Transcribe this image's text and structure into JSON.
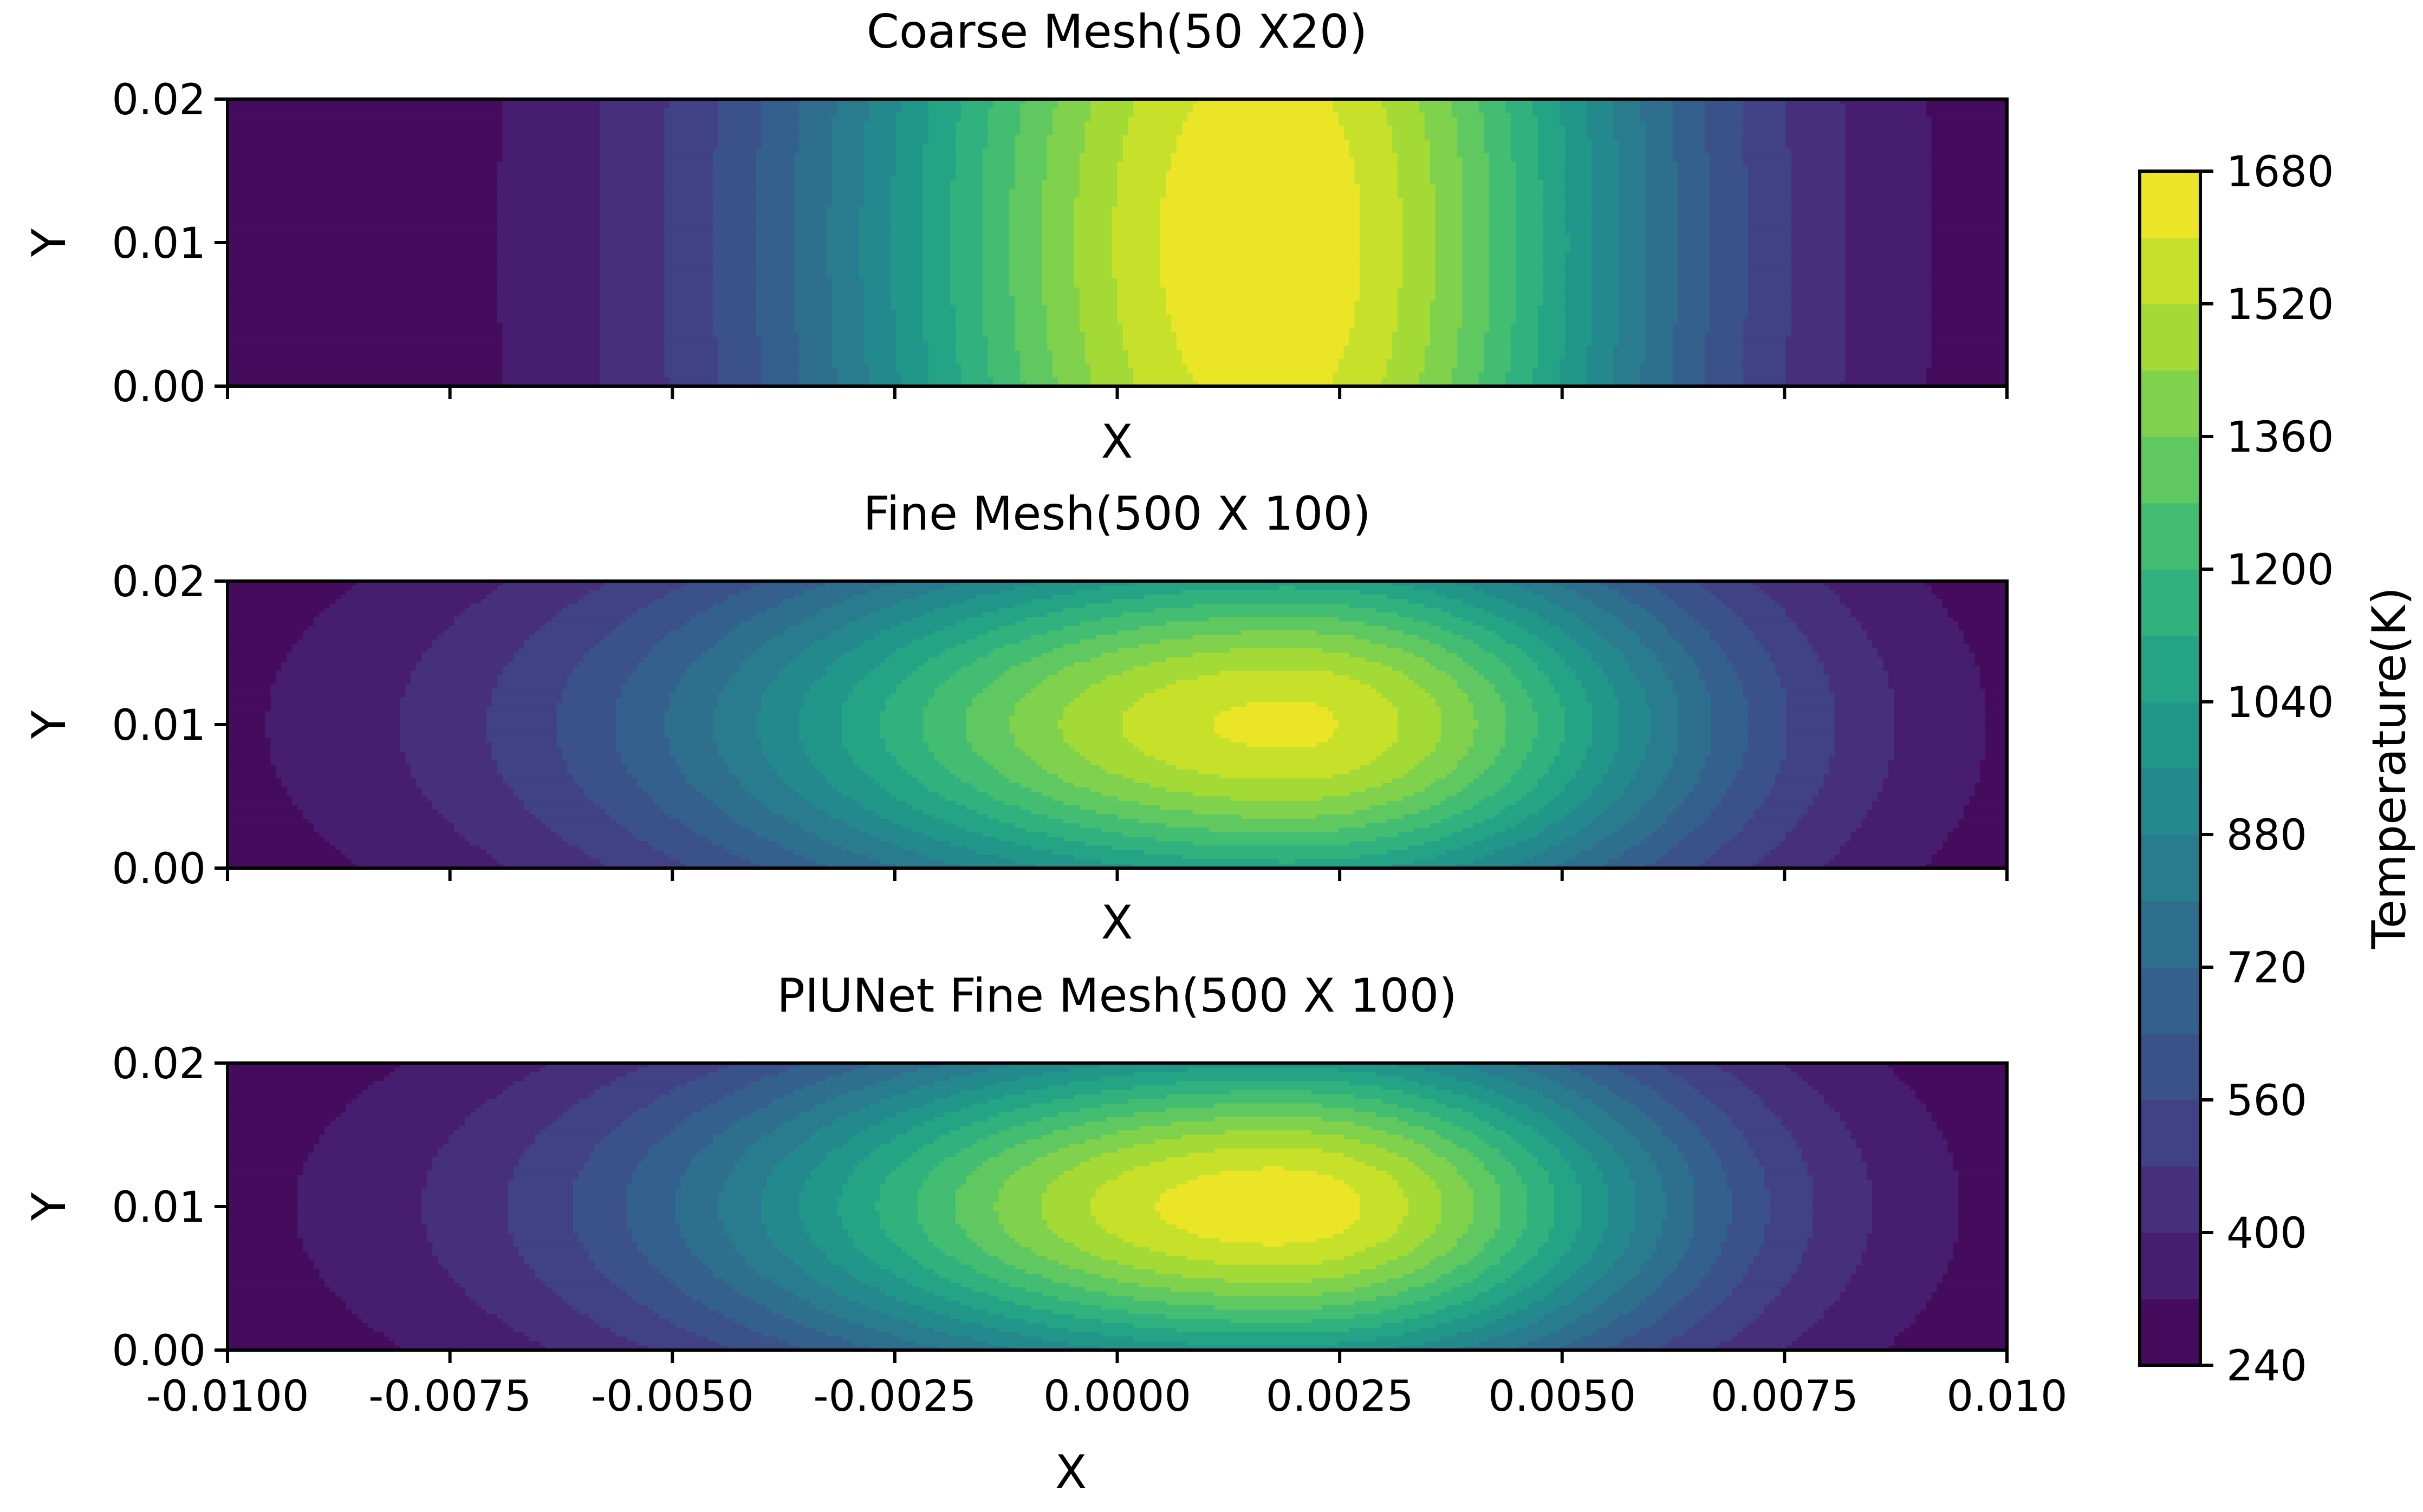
{
  "figure": {
    "colormap": "viridis",
    "colors": {
      "viridis_stops": [
        "#440154",
        "#482878",
        "#3e4989",
        "#31688e",
        "#26828e",
        "#1f9e89",
        "#35b779",
        "#6ece58",
        "#b5de2b",
        "#fde725"
      ],
      "axis": "#000000"
    }
  },
  "chart_data": [
    {
      "type": "heatmap",
      "title": "Coarse Mesh(50 X20)",
      "xlabel": "X",
      "ylabel": "Y",
      "xlim": [
        -0.01,
        0.01
      ],
      "ylim": [
        0.0,
        0.02
      ],
      "x_ticks": [
        -0.01,
        -0.0075,
        -0.005,
        -0.0025,
        0.0,
        0.0025,
        0.005,
        0.0075,
        0.01
      ],
      "x_tick_labels_shown": false,
      "y_tick_labels": [
        "0.00",
        "0.01",
        "0.02"
      ],
      "y_ticks": [
        0.0,
        0.01,
        0.02
      ],
      "hotspot": {
        "x": 0.0017,
        "y": 0.01,
        "peak_temperature": 1680
      },
      "spread": {
        "left_sigma": 0.0036,
        "right_sigma": 0.0031,
        "vertical_shape": 0.03
      },
      "background_temperature": 240
    },
    {
      "type": "heatmap",
      "title": "Fine Mesh(500 X 100)",
      "xlabel": "X",
      "ylabel": "Y",
      "xlim": [
        -0.01,
        0.01
      ],
      "ylim": [
        0.0,
        0.02
      ],
      "x_ticks": [
        -0.01,
        -0.0075,
        -0.005,
        -0.0025,
        0.0,
        0.0025,
        0.005,
        0.0075,
        0.01
      ],
      "x_tick_labels_shown": false,
      "y_tick_labels": [
        "0.00",
        "0.01",
        "0.02"
      ],
      "y_ticks": [
        0.0,
        0.01,
        0.02
      ],
      "hotspot": {
        "x": 0.0019,
        "y": 0.01,
        "peak_temperature": 1620
      },
      "spread": {
        "left_sigma": 0.0048,
        "right_sigma": 0.0033,
        "vertical_shape": 0.45
      },
      "background_temperature": 240
    },
    {
      "type": "heatmap",
      "title": "PIUNet Fine Mesh(500 X 100)",
      "xlabel": "X",
      "ylabel": "Y",
      "xlim": [
        -0.01,
        0.01
      ],
      "ylim": [
        0.0,
        0.02
      ],
      "x_ticks": [
        -0.01,
        -0.0075,
        -0.005,
        -0.0025,
        0.0,
        0.0025,
        0.005,
        0.0075,
        0.01
      ],
      "x_tick_labels": [
        "-0.0100",
        "-0.0075",
        "-0.0050",
        "-0.0025",
        "0.0000",
        "0.0025",
        "0.0050",
        "0.0075",
        "0.010"
      ],
      "y_tick_labels": [
        "0.00",
        "0.01",
        "0.02"
      ],
      "y_ticks": [
        0.0,
        0.01,
        0.02
      ],
      "hotspot": {
        "x": 0.0018,
        "y": 0.01,
        "peak_temperature": 1660
      },
      "spread": {
        "left_sigma": 0.0046,
        "right_sigma": 0.0032,
        "vertical_shape": 0.55
      },
      "background_temperature": 240
    }
  ],
  "colorbar": {
    "label": "Temperature(K)",
    "min": 240,
    "max": 1680,
    "levels": 18,
    "tick_values": [
      240,
      400,
      560,
      720,
      880,
      1040,
      1200,
      1360,
      1520,
      1680
    ],
    "tick_labels": [
      "240",
      "400",
      "560",
      "720",
      "880",
      "1040",
      "1200",
      "1360",
      "1520",
      "1680"
    ]
  }
}
